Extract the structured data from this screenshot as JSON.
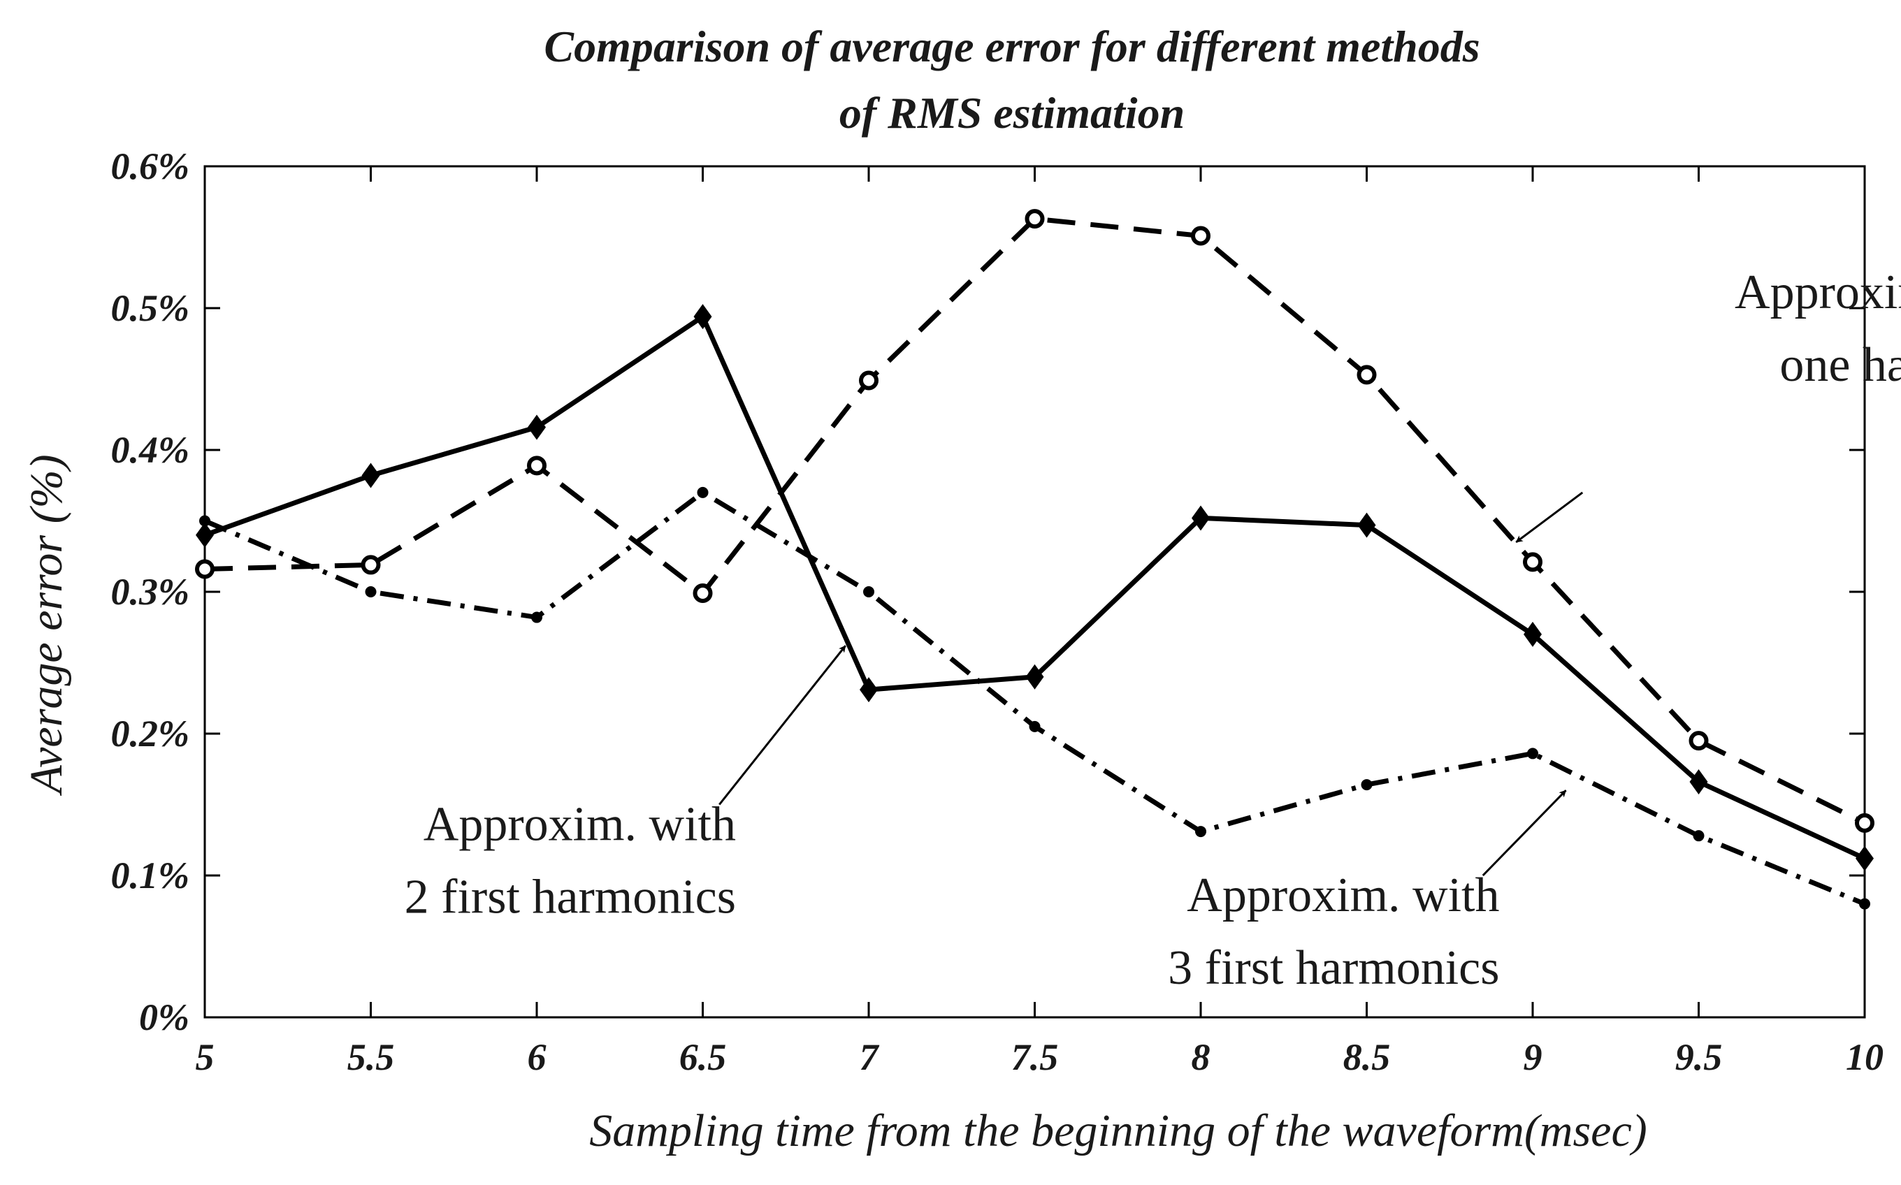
{
  "chart_data": {
    "type": "line",
    "title": "Comparison of average error for different methods",
    "title_line2": "of RMS estimation",
    "xlabel": "Sampling time from the beginning of the waveform(msec)",
    "ylabel": "Average error (%)",
    "x": [
      5,
      5.5,
      6,
      6.5,
      7,
      7.5,
      8,
      8.5,
      9,
      9.5,
      10
    ],
    "x_tick_labels": [
      "5",
      "5.5",
      "6",
      "6.5",
      "7",
      "7.5",
      "8",
      "8.5",
      "9",
      "9.5",
      "10"
    ],
    "y_ticks": [
      0,
      0.1,
      0.2,
      0.3,
      0.4,
      0.5,
      0.6
    ],
    "y_tick_labels": [
      "0%",
      "0.1%",
      "0.2%",
      "0.3%",
      "0.4%",
      "0.5%",
      "0.6%"
    ],
    "xlim": [
      5,
      10
    ],
    "ylim": [
      0,
      0.6
    ],
    "grid": false,
    "legend": "none",
    "series": [
      {
        "key": "one_harmonic",
        "values": [
          0.316,
          0.319,
          0.389,
          0.299,
          0.449,
          0.563,
          0.551,
          0.453,
          0.321,
          0.195,
          0.137
        ],
        "line_style": "dashed",
        "marker": "circle",
        "color": "#000000"
      },
      {
        "key": "two_harmonics",
        "values": [
          0.34,
          0.382,
          0.416,
          0.494,
          0.231,
          0.24,
          0.352,
          0.347,
          0.27,
          0.166,
          0.112
        ],
        "line_style": "solid",
        "marker": "diamond",
        "color": "#000000"
      },
      {
        "key": "three_harmonics",
        "values": [
          0.35,
          0.3,
          0.282,
          0.37,
          0.3,
          0.205,
          0.131,
          0.164,
          0.186,
          0.128,
          0.08
        ],
        "line_style": "dash-dot",
        "marker": "dot",
        "color": "#000000"
      }
    ],
    "annotations": [
      {
        "series": "one_harmonic",
        "lines": [
          "Approxim. with",
          "one harmonic"
        ],
        "anchor": "end",
        "text_at": [
          10.55,
          0.5
        ],
        "arrow_from": [
          9.15,
          0.37
        ],
        "arrow_to": [
          8.95,
          0.335
        ]
      },
      {
        "series": "two_harmonics",
        "lines": [
          "Approxim. with",
          "2 first harmonics"
        ],
        "anchor": "end",
        "text_at": [
          6.6,
          0.125
        ],
        "arrow_from": [
          6.55,
          0.15
        ],
        "arrow_to": [
          6.93,
          0.262
        ]
      },
      {
        "series": "three_harmonics",
        "lines": [
          "Approxim. with",
          "3 first harmonics"
        ],
        "anchor": "end",
        "text_at": [
          8.9,
          0.075
        ],
        "arrow_from": [
          8.85,
          0.1
        ],
        "arrow_to": [
          9.1,
          0.16
        ]
      }
    ]
  }
}
